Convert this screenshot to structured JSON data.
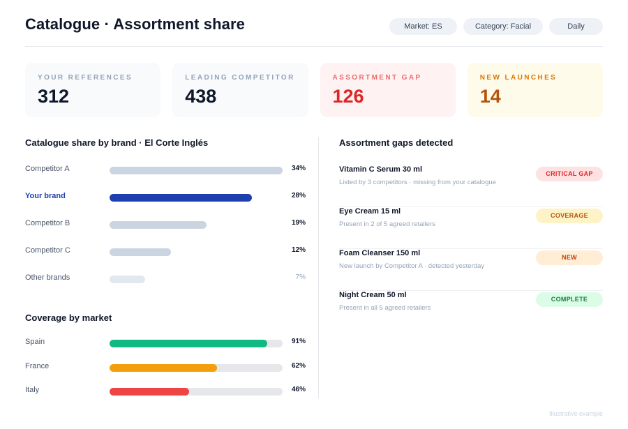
{
  "header": {
    "title": "Catalogue · Assortment share",
    "chips": [
      "Market: ES",
      "Category: Facial",
      "Daily"
    ]
  },
  "kpis": [
    {
      "label": "YOUR REFERENCES",
      "value": "312"
    },
    {
      "label": "LEADING COMPETITOR",
      "value": "438"
    },
    {
      "label": "ASSORTMENT GAP",
      "value": "126"
    },
    {
      "label": "NEW LAUNCHES",
      "value": "14"
    }
  ],
  "brand_share": {
    "title": "Catalogue share by brand · El Corte Inglés",
    "rows": [
      {
        "label": "Competitor A",
        "pct": "34%",
        "value": 34,
        "color": "#cbd5e1"
      },
      {
        "label": "Your brand",
        "pct": "28%",
        "value": 28,
        "color": "#1e40af"
      },
      {
        "label": "Competitor B",
        "pct": "19%",
        "value": 19,
        "color": "#cbd5e1"
      },
      {
        "label": "Competitor C",
        "pct": "12%",
        "value": 12,
        "color": "#cbd5e1"
      },
      {
        "label": "Other brands",
        "pct": "7%",
        "value": 7,
        "color": "#e2e8f0"
      }
    ]
  },
  "coverage": {
    "title": "Coverage by market",
    "rows": [
      {
        "label": "Spain",
        "pct": "91%",
        "value": 91,
        "color": "#10b981"
      },
      {
        "label": "France",
        "pct": "62%",
        "value": 62,
        "color": "#f59e0b"
      },
      {
        "label": "Italy",
        "pct": "46%",
        "value": 46,
        "color": "#ef4444"
      }
    ]
  },
  "gaps": {
    "title": "Assortment gaps detected",
    "items": [
      {
        "name": "Vitamin C Serum 30 ml",
        "desc": "Listed by 3 competitors · missing from your catalogue",
        "badge": "CRITICAL GAP",
        "badge_bg": "#fee2e2",
        "badge_fg": "#dc2626"
      },
      {
        "name": "Eye Cream 15 ml",
        "desc": "Present in 2 of 5 agreed retailers",
        "badge": "COVERAGE",
        "badge_bg": "#fef3c7",
        "badge_fg": "#b45309"
      },
      {
        "name": "Foam Cleanser 150 ml",
        "desc": "New launch by Competitor A · detected yesterday",
        "badge": "NEW",
        "badge_bg": "#ffedd5",
        "badge_fg": "#c2410c"
      },
      {
        "name": "Night Cream 50 ml",
        "desc": "Present in all 5 agreed retailers",
        "badge": "COMPLETE",
        "badge_bg": "#dcfce7",
        "badge_fg": "#15803d"
      }
    ]
  },
  "footnote": "Illustrative example"
}
